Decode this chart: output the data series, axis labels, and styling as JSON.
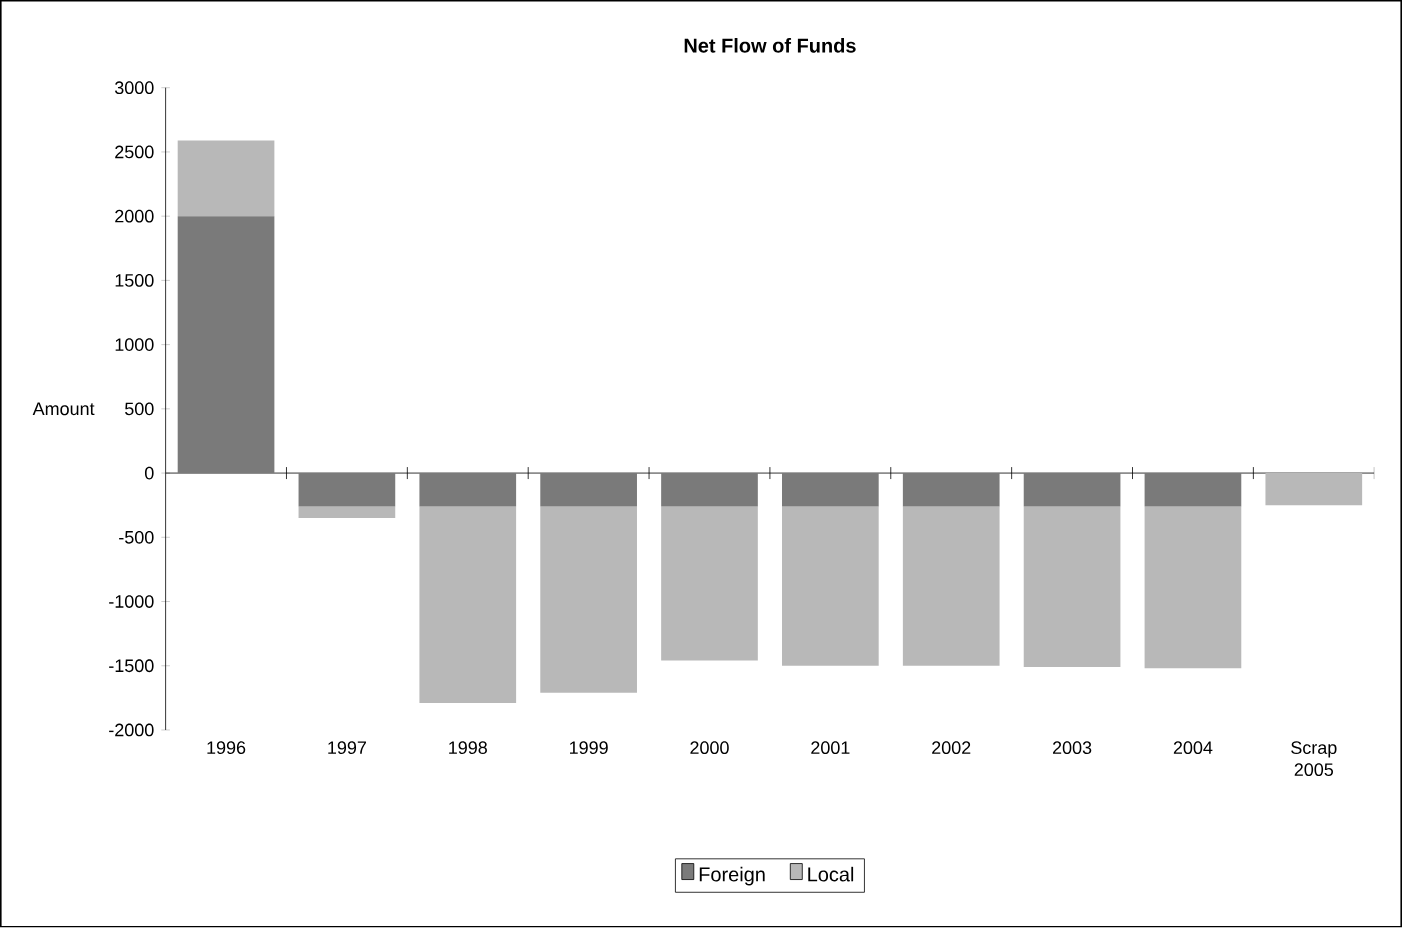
{
  "chart_data": {
    "type": "bar",
    "title": "**Net Flow of Funds**",
    "ylabel": "Amount",
    "categories": [
      "1996",
      "1997",
      "1998",
      "1999",
      "2000",
      "2001",
      "2002",
      "2003",
      "2004",
      "Scrap 2005"
    ],
    "stacked": true,
    "series": [
      {
        "name": "Foreign",
        "color": "#7a7a7a",
        "values": [
          2000,
          -260,
          -260,
          -260,
          -260,
          -260,
          -260,
          -260,
          -260,
          0
        ]
      },
      {
        "name": "Local",
        "color": "#b8b8b8",
        "values": [
          590,
          -90,
          -1530,
          -1450,
          -1200,
          -1240,
          -1240,
          -1250,
          -1260,
          -250
        ]
      }
    ],
    "ylim": [
      -2000,
      3000
    ],
    "yticks": [
      -2000,
      -1500,
      -1000,
      -500,
      0,
      500,
      1000,
      1500,
      2000,
      2500,
      3000
    ],
    "legend": "bottom"
  }
}
